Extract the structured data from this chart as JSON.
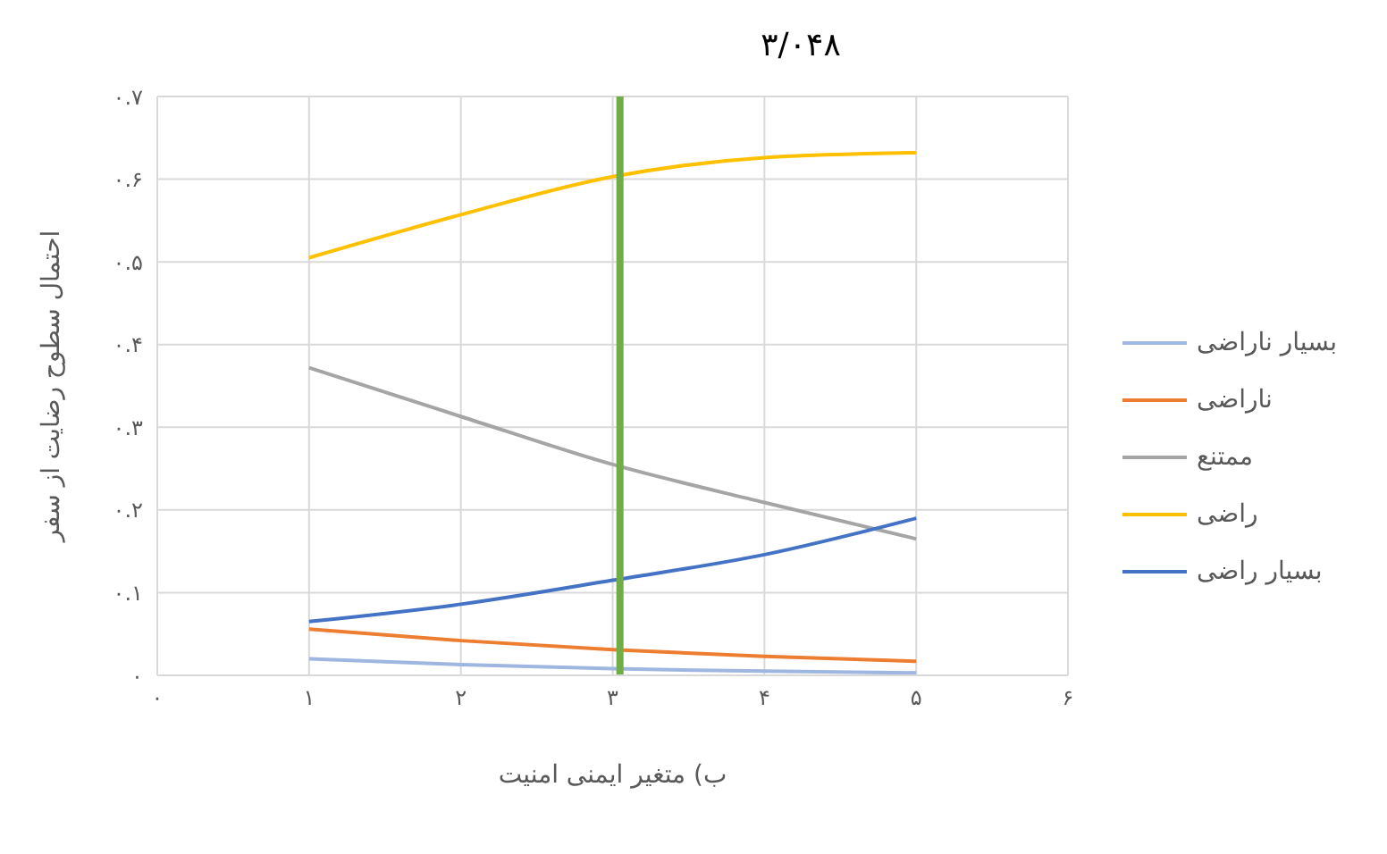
{
  "chart_data": {
    "type": "line",
    "title": "۳/۰۴۸",
    "xlabel": "ب) متغیر ایمنی امنیت",
    "ylabel": "احتمال سطوح رضایت از سفر",
    "x": [
      1,
      2,
      3,
      4,
      5
    ],
    "series": [
      {
        "name": "بسیار ناراضی",
        "color": "#9fb6e0",
        "values": [
          0.02,
          0.013,
          0.008,
          0.005,
          0.003
        ]
      },
      {
        "name": "ناراضی",
        "color": "#ed7d31",
        "values": [
          0.056,
          0.042,
          0.031,
          0.023,
          0.017
        ]
      },
      {
        "name": "ممتنع",
        "color": "#a5a5a5",
        "values": [
          0.372,
          0.313,
          0.255,
          0.209,
          0.165
        ]
      },
      {
        "name": "راضی",
        "color": "#ffc000",
        "values": [
          0.505,
          0.557,
          0.603,
          0.626,
          0.632
        ]
      },
      {
        "name": "بسیار راضی",
        "color": "#4472c4",
        "values": [
          0.065,
          0.086,
          0.115,
          0.146,
          0.19
        ]
      }
    ],
    "xlim": [
      0,
      6
    ],
    "xticks": [
      {
        "value": 0,
        "label": "۰"
      },
      {
        "value": 1,
        "label": "۱"
      },
      {
        "value": 2,
        "label": "۲"
      },
      {
        "value": 3,
        "label": "۳"
      },
      {
        "value": 4,
        "label": "۴"
      },
      {
        "value": 5,
        "label": "۵"
      },
      {
        "value": 6,
        "label": "۶"
      }
    ],
    "ylim": [
      0,
      0.7
    ],
    "yticks": [
      {
        "value": 0,
        "label": "۰"
      },
      {
        "value": 0.1,
        "label": "۰.۱"
      },
      {
        "value": 0.2,
        "label": "۰.۲"
      },
      {
        "value": 0.3,
        "label": "۰.۳"
      },
      {
        "value": 0.4,
        "label": "۰.۴"
      },
      {
        "value": 0.5,
        "label": "۰.۵"
      },
      {
        "value": 0.6,
        "label": "۰.۶"
      },
      {
        "value": 0.7,
        "label": "۰.۷"
      }
    ],
    "ref_lines": [
      {
        "axis": "x",
        "value": 3.048,
        "color": "#70ad47"
      }
    ],
    "grid": true,
    "legend": "right",
    "marker": "none",
    "line_style": "solid"
  }
}
